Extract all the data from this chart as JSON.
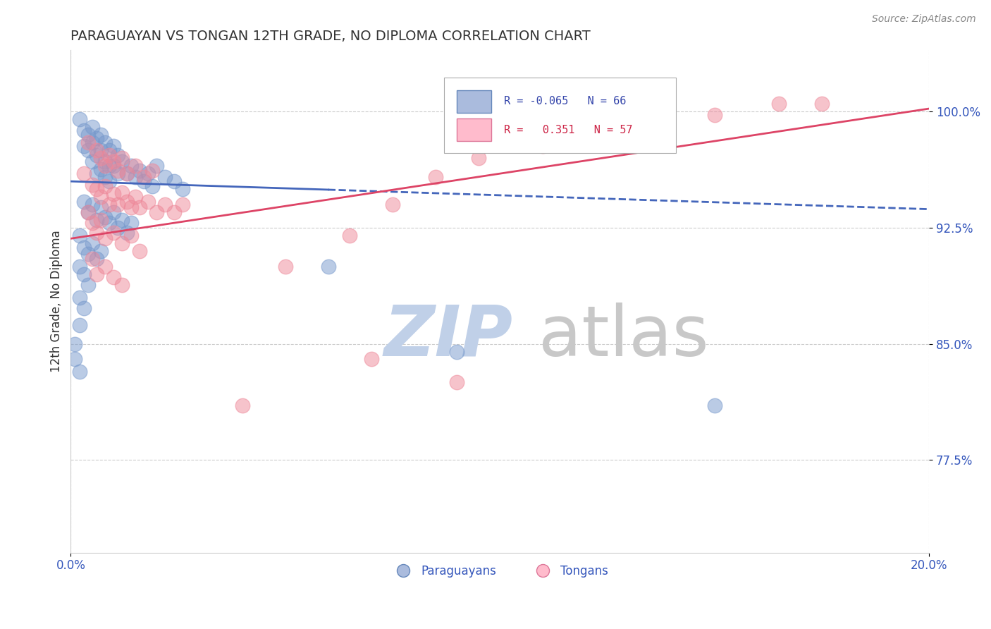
{
  "title": "PARAGUAYAN VS TONGAN 12TH GRADE, NO DIPLOMA CORRELATION CHART",
  "source": "Source: ZipAtlas.com",
  "ylabel": "12th Grade, No Diploma",
  "ytick_labels": [
    "77.5%",
    "85.0%",
    "92.5%",
    "100.0%"
  ],
  "ytick_values": [
    0.775,
    0.85,
    0.925,
    1.0
  ],
  "xlim": [
    0.0,
    0.2
  ],
  "ylim": [
    0.715,
    1.04
  ],
  "blue_color": "#7799cc",
  "pink_color": "#ee8899",
  "blue_line_color": "#4466bb",
  "pink_line_color": "#dd4466",
  "blue_R": -0.065,
  "pink_R": 0.351,
  "blue_N": 66,
  "pink_N": 57,
  "blue_trend_x": [
    0.0,
    0.2
  ],
  "blue_trend_y": [
    0.955,
    0.937
  ],
  "pink_trend_x": [
    0.0,
    0.2
  ],
  "pink_trend_y": [
    0.918,
    1.002
  ],
  "blue_scatter": [
    [
      0.002,
      0.995
    ],
    [
      0.003,
      0.988
    ],
    [
      0.003,
      0.978
    ],
    [
      0.004,
      0.985
    ],
    [
      0.004,
      0.975
    ],
    [
      0.005,
      0.99
    ],
    [
      0.005,
      0.98
    ],
    [
      0.005,
      0.968
    ],
    [
      0.006,
      0.983
    ],
    [
      0.006,
      0.972
    ],
    [
      0.006,
      0.96
    ],
    [
      0.007,
      0.985
    ],
    [
      0.007,
      0.975
    ],
    [
      0.007,
      0.963
    ],
    [
      0.008,
      0.98
    ],
    [
      0.008,
      0.968
    ],
    [
      0.008,
      0.958
    ],
    [
      0.009,
      0.975
    ],
    [
      0.009,
      0.965
    ],
    [
      0.009,
      0.955
    ],
    [
      0.01,
      0.978
    ],
    [
      0.01,
      0.965
    ],
    [
      0.011,
      0.972
    ],
    [
      0.011,
      0.96
    ],
    [
      0.012,
      0.968
    ],
    [
      0.013,
      0.96
    ],
    [
      0.014,
      0.965
    ],
    [
      0.015,
      0.958
    ],
    [
      0.016,
      0.962
    ],
    [
      0.017,
      0.955
    ],
    [
      0.018,
      0.96
    ],
    [
      0.019,
      0.952
    ],
    [
      0.02,
      0.965
    ],
    [
      0.022,
      0.958
    ],
    [
      0.024,
      0.955
    ],
    [
      0.026,
      0.95
    ],
    [
      0.003,
      0.942
    ],
    [
      0.004,
      0.935
    ],
    [
      0.005,
      0.94
    ],
    [
      0.006,
      0.93
    ],
    [
      0.007,
      0.938
    ],
    [
      0.008,
      0.932
    ],
    [
      0.009,
      0.928
    ],
    [
      0.01,
      0.935
    ],
    [
      0.011,
      0.925
    ],
    [
      0.012,
      0.93
    ],
    [
      0.013,
      0.922
    ],
    [
      0.014,
      0.928
    ],
    [
      0.002,
      0.92
    ],
    [
      0.003,
      0.912
    ],
    [
      0.004,
      0.908
    ],
    [
      0.005,
      0.915
    ],
    [
      0.006,
      0.905
    ],
    [
      0.007,
      0.91
    ],
    [
      0.002,
      0.9
    ],
    [
      0.003,
      0.895
    ],
    [
      0.004,
      0.888
    ],
    [
      0.002,
      0.88
    ],
    [
      0.003,
      0.873
    ],
    [
      0.002,
      0.862
    ],
    [
      0.001,
      0.85
    ],
    [
      0.001,
      0.84
    ],
    [
      0.002,
      0.832
    ],
    [
      0.09,
      0.845
    ],
    [
      0.15,
      0.81
    ],
    [
      0.06,
      0.9
    ]
  ],
  "pink_scatter": [
    [
      0.004,
      0.98
    ],
    [
      0.006,
      0.975
    ],
    [
      0.007,
      0.97
    ],
    [
      0.008,
      0.965
    ],
    [
      0.009,
      0.972
    ],
    [
      0.01,
      0.968
    ],
    [
      0.011,
      0.962
    ],
    [
      0.012,
      0.97
    ],
    [
      0.013,
      0.96
    ],
    [
      0.015,
      0.965
    ],
    [
      0.017,
      0.958
    ],
    [
      0.019,
      0.962
    ],
    [
      0.003,
      0.96
    ],
    [
      0.005,
      0.953
    ],
    [
      0.006,
      0.95
    ],
    [
      0.007,
      0.945
    ],
    [
      0.008,
      0.952
    ],
    [
      0.009,
      0.94
    ],
    [
      0.01,
      0.947
    ],
    [
      0.011,
      0.94
    ],
    [
      0.012,
      0.948
    ],
    [
      0.013,
      0.942
    ],
    [
      0.014,
      0.938
    ],
    [
      0.015,
      0.945
    ],
    [
      0.016,
      0.938
    ],
    [
      0.018,
      0.942
    ],
    [
      0.02,
      0.935
    ],
    [
      0.022,
      0.94
    ],
    [
      0.024,
      0.935
    ],
    [
      0.026,
      0.94
    ],
    [
      0.004,
      0.935
    ],
    [
      0.005,
      0.928
    ],
    [
      0.006,
      0.922
    ],
    [
      0.007,
      0.93
    ],
    [
      0.008,
      0.918
    ],
    [
      0.01,
      0.922
    ],
    [
      0.012,
      0.915
    ],
    [
      0.014,
      0.92
    ],
    [
      0.016,
      0.91
    ],
    [
      0.005,
      0.905
    ],
    [
      0.006,
      0.895
    ],
    [
      0.008,
      0.9
    ],
    [
      0.01,
      0.893
    ],
    [
      0.012,
      0.888
    ],
    [
      0.05,
      0.9
    ],
    [
      0.065,
      0.92
    ],
    [
      0.075,
      0.94
    ],
    [
      0.085,
      0.958
    ],
    [
      0.095,
      0.97
    ],
    [
      0.11,
      0.978
    ],
    [
      0.13,
      0.99
    ],
    [
      0.15,
      0.998
    ],
    [
      0.165,
      1.005
    ],
    [
      0.04,
      0.81
    ],
    [
      0.07,
      0.84
    ],
    [
      0.09,
      0.825
    ],
    [
      0.175,
      1.005
    ]
  ],
  "watermark_zip_color": "#c0d0e8",
  "watermark_atlas_color": "#c8c8c8",
  "background_color": "#ffffff",
  "grid_color": "#cccccc",
  "title_color": "#333333",
  "ytick_color": "#3355bb",
  "xtick_color": "#3355bb",
  "ylabel_color": "#333333",
  "source_color": "#888888"
}
